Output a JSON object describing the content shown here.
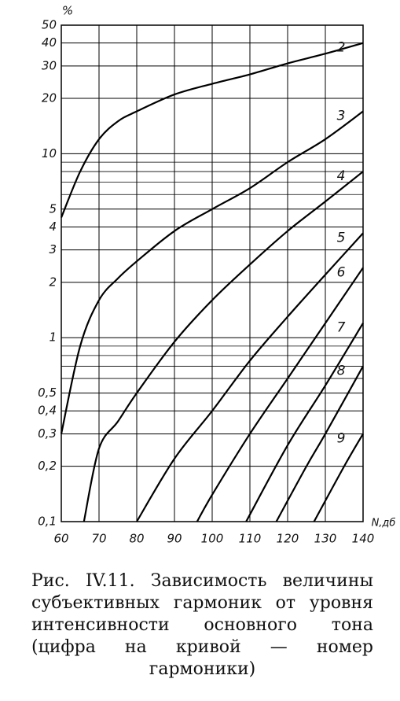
{
  "chart_data": {
    "type": "line",
    "y_label": "%",
    "x_label": "N,дб",
    "log_y": true,
    "grid": true,
    "color": "#000000",
    "xlim": [
      60,
      140
    ],
    "xticks": [
      60,
      70,
      80,
      90,
      100,
      110,
      120,
      130,
      140
    ],
    "ylim": [
      0.1,
      50
    ],
    "yticks": [
      {
        "value": 0.1,
        "label": "0,1"
      },
      {
        "value": 0.2,
        "label": "0,2"
      },
      {
        "value": 0.3,
        "label": "0,3"
      },
      {
        "value": 0.4,
        "label": "0,4"
      },
      {
        "value": 0.5,
        "label": "0,5"
      },
      1,
      2,
      3,
      4,
      5,
      10,
      20,
      30,
      40,
      50
    ],
    "yminor": [
      0.6,
      0.7,
      0.8,
      0.9,
      6,
      7,
      8,
      9
    ],
    "series": [
      {
        "name": "2",
        "x": [
          60,
          65,
          70,
          75,
          80,
          90,
          100,
          110,
          120,
          130,
          140
        ],
        "values": [
          4.5,
          8,
          12,
          15,
          17,
          21,
          24,
          27,
          31,
          35,
          40
        ]
      },
      {
        "name": "3",
        "x": [
          60,
          65,
          70,
          75,
          80,
          90,
          100,
          110,
          120,
          130,
          140
        ],
        "values": [
          0.3,
          0.9,
          1.6,
          2.1,
          2.6,
          3.8,
          5,
          6.5,
          9,
          12,
          17
        ]
      },
      {
        "name": "4",
        "x": [
          66,
          70,
          75,
          80,
          90,
          100,
          110,
          120,
          130,
          140
        ],
        "values": [
          0.1,
          0.25,
          0.35,
          0.5,
          0.95,
          1.6,
          2.5,
          3.8,
          5.5,
          8
        ]
      },
      {
        "name": "5",
        "x": [
          80,
          90,
          100,
          110,
          120,
          130,
          140
        ],
        "values": [
          0.1,
          0.22,
          0.4,
          0.75,
          1.3,
          2.2,
          3.7
        ]
      },
      {
        "name": "6",
        "x": [
          96,
          100,
          110,
          120,
          130,
          140
        ],
        "values": [
          0.1,
          0.14,
          0.3,
          0.6,
          1.2,
          2.4
        ]
      },
      {
        "name": "7",
        "x": [
          109,
          120,
          130,
          140
        ],
        "values": [
          0.1,
          0.26,
          0.55,
          1.2
        ]
      },
      {
        "name": "8",
        "x": [
          117,
          125,
          130,
          140
        ],
        "values": [
          0.1,
          0.2,
          0.3,
          0.7
        ]
      },
      {
        "name": "9",
        "x": [
          127,
          135,
          140
        ],
        "values": [
          0.1,
          0.2,
          0.3
        ]
      }
    ],
    "caption": "Рис. IV.11. Зависимость величины субъективных гармоник от уровня интенсивности основного тона (цифра на кривой — номер гармоники)"
  }
}
